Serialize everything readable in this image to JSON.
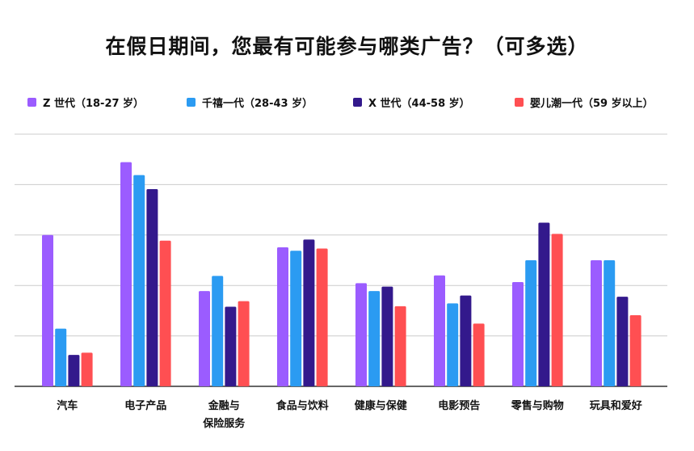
{
  "chart_data": {
    "type": "bar",
    "title": "在假日期间，您最有可能参与哪类广告？（可多选）",
    "xlabel": "",
    "ylabel": "",
    "ylim": [
      0,
      45
    ],
    "grid": true,
    "legend_position": "top",
    "categories": [
      [
        "汽车"
      ],
      [
        "电子产品"
      ],
      [
        "金融与",
        "保险服务"
      ],
      [
        "食品与饮料"
      ],
      [
        "健康与保健"
      ],
      [
        "电影预告"
      ],
      [
        "零售与购物"
      ],
      [
        "玩具和爱好"
      ]
    ],
    "series": [
      {
        "name": "Z 世代（18-27 岁）",
        "color": "#9b5cff",
        "values": [
          27,
          40,
          17,
          24.8,
          18.4,
          19.8,
          18.6,
          22.5
        ]
      },
      {
        "name": "千禧一代（28-43 岁）",
        "color": "#2b9bf2",
        "values": [
          10.3,
          37.7,
          19.7,
          24.2,
          17,
          14.8,
          22.5,
          22.5
        ]
      },
      {
        "name": "X 世代（44-58 岁）",
        "color": "#33198c",
        "values": [
          5.6,
          35.2,
          14.2,
          26.2,
          17.8,
          16.2,
          29.2,
          16
        ]
      },
      {
        "name": "婴儿潮一代（59 岁以上）",
        "color": "#ff4f52",
        "values": [
          6,
          26,
          15.2,
          24.6,
          14.3,
          11.2,
          27.2,
          12.7
        ]
      }
    ]
  }
}
